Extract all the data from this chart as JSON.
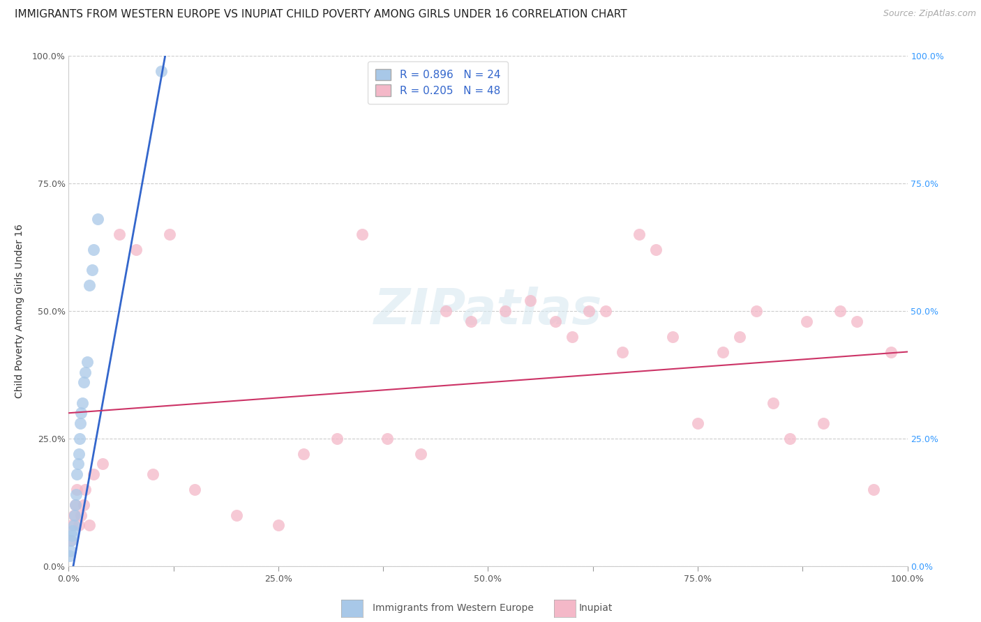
{
  "title": "IMMIGRANTS FROM WESTERN EUROPE VS INUPIAT CHILD POVERTY AMONG GIRLS UNDER 16 CORRELATION CHART",
  "source": "Source: ZipAtlas.com",
  "ylabel": "Child Poverty Among Girls Under 16",
  "xlim": [
    0,
    1.0
  ],
  "ylim": [
    0,
    1.0
  ],
  "xticks": [
    0.0,
    0.125,
    0.25,
    0.375,
    0.5,
    0.625,
    0.75,
    0.875,
    1.0
  ],
  "yticks": [
    0.0,
    0.25,
    0.5,
    0.75,
    1.0
  ],
  "xticklabels": [
    "0.0%",
    "",
    "25.0%",
    "",
    "50.0%",
    "",
    "75.0%",
    "",
    "100.0%"
  ],
  "yticklabels": [
    "0.0%",
    "25.0%",
    "50.0%",
    "75.0%",
    "100.0%"
  ],
  "right_yticklabels": [
    "0.0%",
    "25.0%",
    "50.0%",
    "75.0%",
    "100.0%"
  ],
  "watermark": "ZIPatlas",
  "legend_r1": "R = 0.896",
  "legend_n1": "N = 24",
  "legend_r2": "R = 0.205",
  "legend_n2": "N = 48",
  "blue_color": "#a8c8e8",
  "pink_color": "#f4b8c8",
  "blue_line_color": "#3366cc",
  "pink_line_color": "#cc3366",
  "label1": "Immigrants from Western Europe",
  "label2": "Inupiat",
  "blue_scatter_x": [
    0.001,
    0.002,
    0.003,
    0.004,
    0.005,
    0.006,
    0.007,
    0.008,
    0.009,
    0.01,
    0.011,
    0.012,
    0.013,
    0.014,
    0.015,
    0.016,
    0.018,
    0.02,
    0.022,
    0.025,
    0.028,
    0.03,
    0.035,
    0.11
  ],
  "blue_scatter_y": [
    0.02,
    0.03,
    0.05,
    0.06,
    0.07,
    0.08,
    0.1,
    0.12,
    0.14,
    0.18,
    0.2,
    0.22,
    0.25,
    0.28,
    0.3,
    0.32,
    0.36,
    0.38,
    0.4,
    0.55,
    0.58,
    0.62,
    0.68,
    0.97
  ],
  "pink_scatter_x": [
    0.002,
    0.004,
    0.006,
    0.008,
    0.01,
    0.012,
    0.015,
    0.018,
    0.02,
    0.025,
    0.03,
    0.04,
    0.06,
    0.08,
    0.1,
    0.12,
    0.15,
    0.2,
    0.25,
    0.28,
    0.32,
    0.35,
    0.38,
    0.42,
    0.45,
    0.48,
    0.52,
    0.55,
    0.58,
    0.6,
    0.62,
    0.64,
    0.66,
    0.68,
    0.7,
    0.72,
    0.75,
    0.78,
    0.8,
    0.82,
    0.84,
    0.86,
    0.88,
    0.9,
    0.92,
    0.94,
    0.96,
    0.98
  ],
  "pink_scatter_y": [
    0.05,
    0.08,
    0.1,
    0.12,
    0.15,
    0.08,
    0.1,
    0.12,
    0.15,
    0.08,
    0.18,
    0.2,
    0.65,
    0.62,
    0.18,
    0.65,
    0.15,
    0.1,
    0.08,
    0.22,
    0.25,
    0.65,
    0.25,
    0.22,
    0.5,
    0.48,
    0.5,
    0.52,
    0.48,
    0.45,
    0.5,
    0.5,
    0.42,
    0.65,
    0.62,
    0.45,
    0.28,
    0.42,
    0.45,
    0.5,
    0.32,
    0.25,
    0.48,
    0.28,
    0.5,
    0.48,
    0.15,
    0.42
  ],
  "pink_line_x": [
    0.0,
    1.0
  ],
  "pink_line_y": [
    0.3,
    0.42
  ],
  "blue_line_x": [
    0.0,
    0.115
  ],
  "blue_line_y": [
    -0.05,
    1.0
  ],
  "title_fontsize": 11,
  "axis_label_fontsize": 10,
  "tick_fontsize": 9,
  "source_fontsize": 9,
  "legend_fontsize": 11,
  "background_color": "#ffffff",
  "grid_color": "#cccccc"
}
